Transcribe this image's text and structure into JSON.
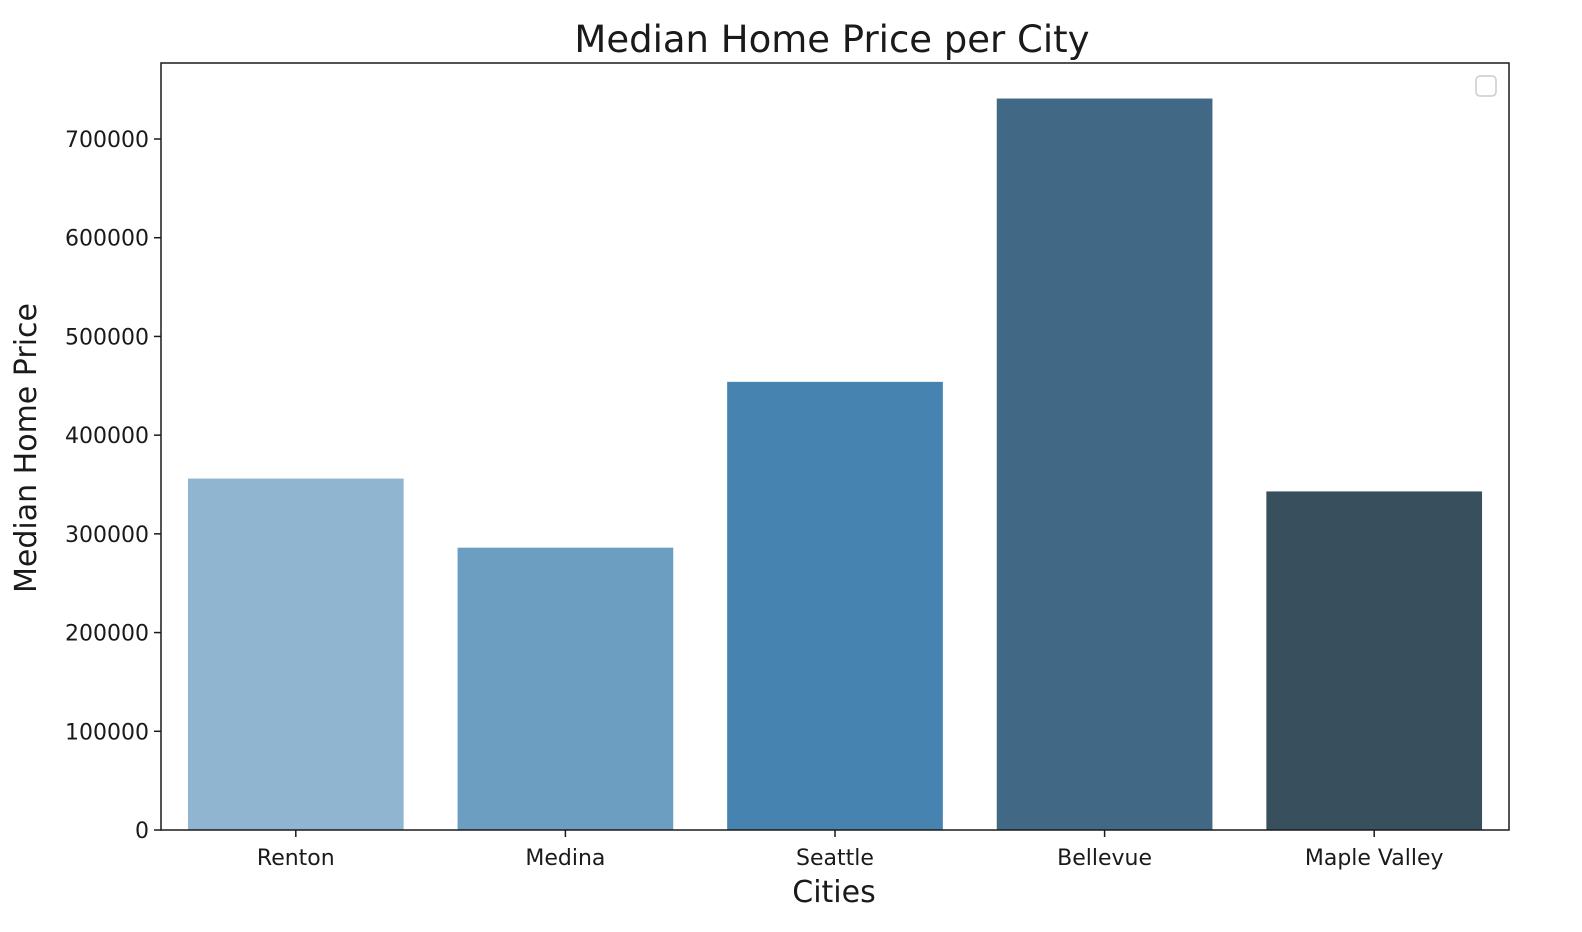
{
  "chart_data": {
    "type": "bar",
    "title": "Median Home Price per City",
    "xlabel": "Cities",
    "ylabel": "Median Home Price",
    "categories": [
      "Renton",
      "Medina",
      "Seattle",
      "Bellevue",
      "Maple Valley"
    ],
    "values": [
      356000,
      286000,
      454000,
      741000,
      343000
    ],
    "colors": [
      "#90b5d0",
      "#6b9ec1",
      "#4683b0",
      "#416885",
      "#384f5d"
    ],
    "ylim": [
      0,
      777000
    ],
    "yticks": [
      0,
      100000,
      200000,
      300000,
      400000,
      500000,
      600000,
      700000
    ],
    "ytick_labels": [
      "0",
      "100000",
      "200000",
      "300000",
      "400000",
      "500000",
      "600000",
      "700000"
    ],
    "grid": false,
    "legend": {
      "placement": "top-right",
      "entries": []
    }
  }
}
